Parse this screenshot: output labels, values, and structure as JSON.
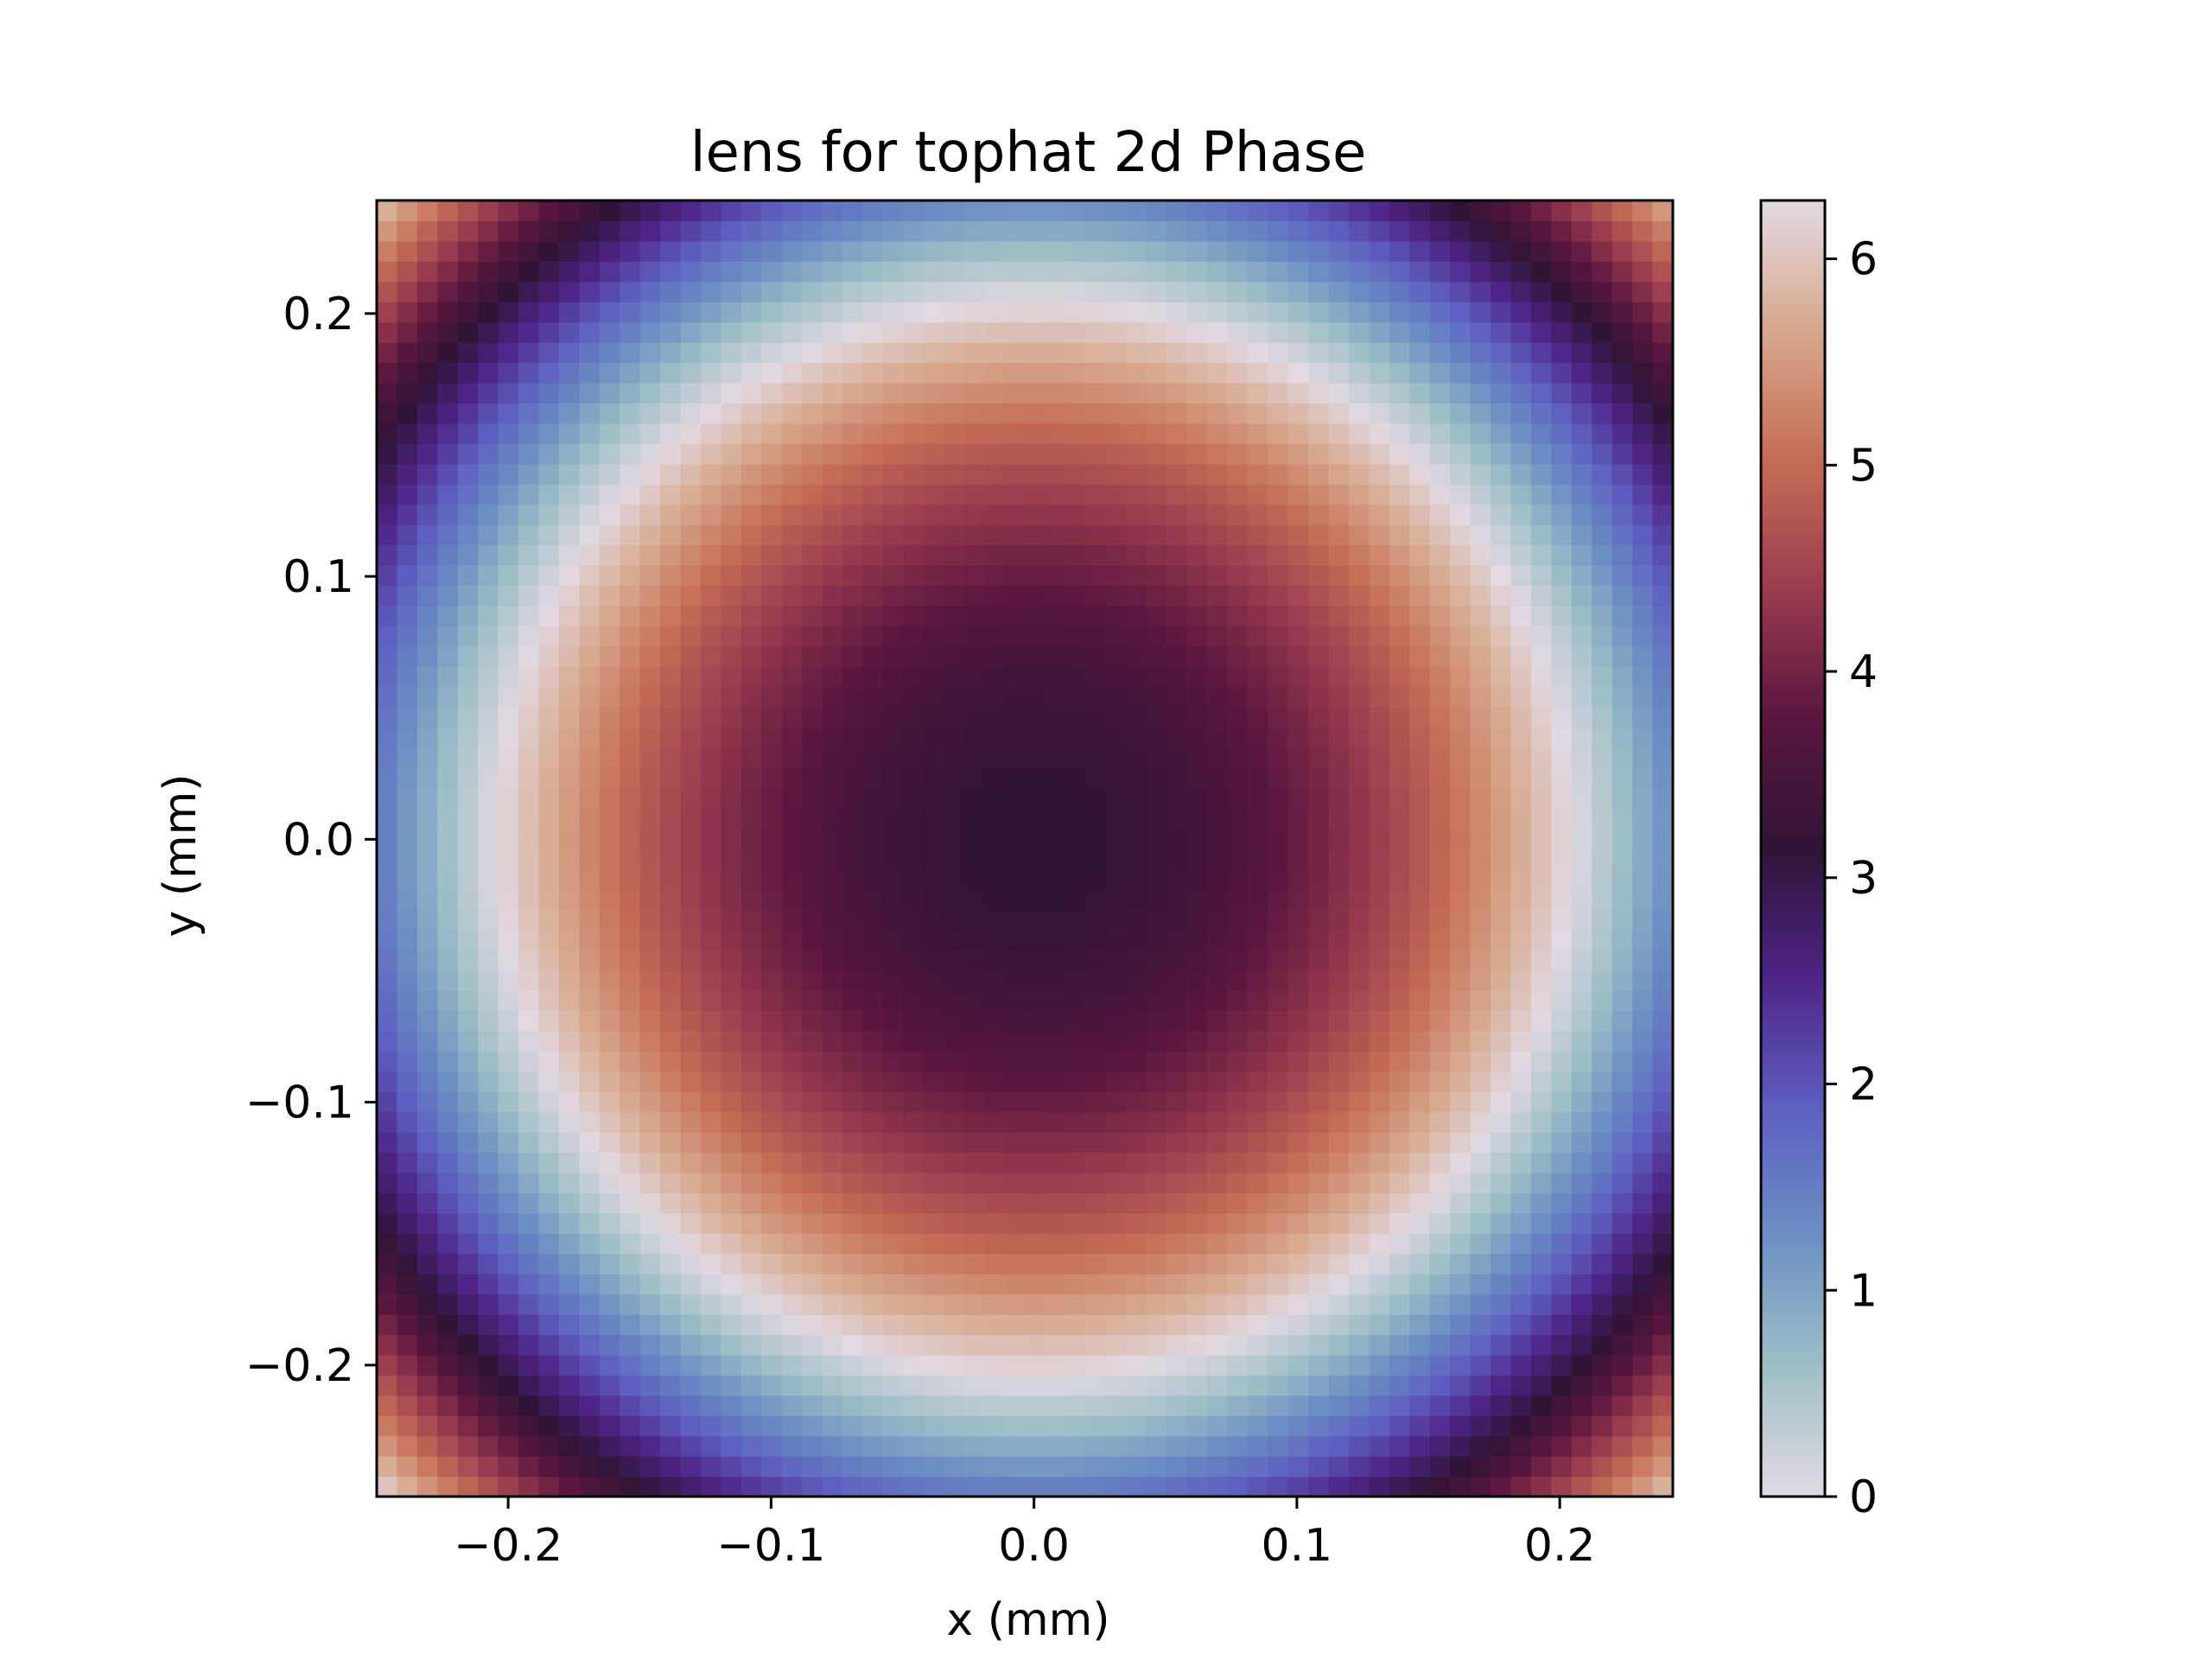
{
  "chart_data": {
    "type": "heatmap",
    "title": "lens for tophat 2d Phase",
    "xlabel": "x (mm)",
    "ylabel": "y (mm)",
    "xlim": [
      -0.25,
      0.243
    ],
    "ylim": [
      -0.25,
      0.243
    ],
    "xticks": [
      -0.2,
      -0.1,
      0.0,
      0.1,
      0.2
    ],
    "yticks": [
      -0.2,
      -0.1,
      0.0,
      0.1,
      0.2
    ],
    "xtick_labels": [
      "−0.2",
      "−0.1",
      "0.0",
      "0.1",
      "0.2"
    ],
    "ytick_labels": [
      "−0.2",
      "−0.1",
      "0.0",
      "0.1",
      "0.2"
    ],
    "grid": {
      "nx": 64,
      "ny": 64
    },
    "phase_model": {
      "description_of_values": "wrapped phase value (radians) at each grid cell, phase = (pi + k*(x^2 + y^2)) mod 2*pi",
      "center_value": 3.14159,
      "k_rad_per_mm2": 75.4
    },
    "colormap": {
      "name": "twilight_shifted",
      "stops": [
        "#e2d9e2",
        "#9fbfc6",
        "#6b8fc3",
        "#5d5fc0",
        "#4e2486",
        "#2f1436",
        "#5a163e",
        "#9a3b4f",
        "#c56c56",
        "#d7a88c",
        "#e2d9e2"
      ]
    },
    "colorbar": {
      "range": [
        0,
        6.283
      ],
      "ticks": [
        0,
        1,
        2,
        3,
        4,
        5,
        6
      ],
      "tick_labels": [
        "0",
        "1",
        "2",
        "3",
        "4",
        "5",
        "6"
      ]
    }
  }
}
